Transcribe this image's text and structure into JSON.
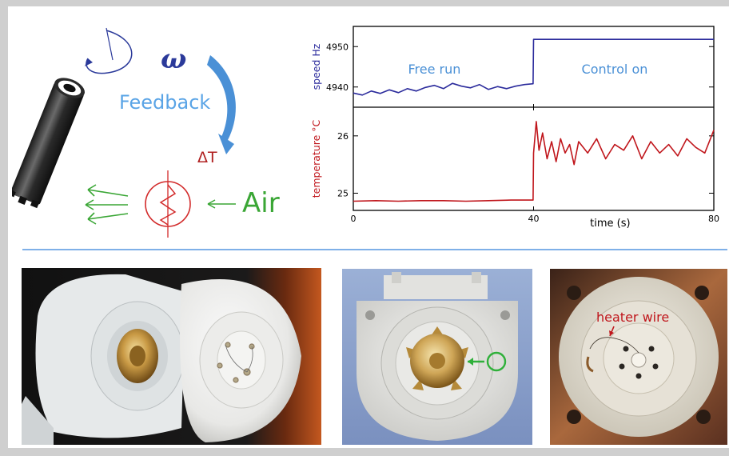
{
  "diagram": {
    "omega_label": "ω",
    "feedback_label": "Feedback",
    "delta_t_label": "ΔT",
    "air_label": "Air",
    "colors": {
      "feedback": "#5aa4e6",
      "air": "#3aa635",
      "heater": "#d22a2a",
      "arrow_blue": "#4a90d6"
    }
  },
  "chart_data": [
    {
      "type": "line",
      "ylabel": "speed Hz",
      "yticks": [
        4940,
        4950
      ],
      "xlim": [
        0,
        80
      ],
      "ylim": [
        4935,
        4955
      ],
      "annotations": [
        "Free run",
        "Control on"
      ],
      "series": [
        {
          "color": "#2b2b9c",
          "x": [
            0,
            2,
            4,
            6,
            8,
            10,
            12,
            14,
            16,
            18,
            20,
            22,
            24,
            26,
            28,
            30,
            32,
            34,
            36,
            38,
            39.9,
            40,
            42,
            50,
            60,
            70,
            80
          ],
          "y": [
            4938.5,
            4938.0,
            4939.0,
            4938.4,
            4939.3,
            4938.6,
            4939.6,
            4939.0,
            4939.9,
            4940.4,
            4939.6,
            4940.9,
            4940.2,
            4939.8,
            4940.6,
            4939.4,
            4940.1,
            4939.6,
            4940.2,
            4940.6,
            4940.8,
            4951.8,
            4951.8,
            4951.8,
            4951.8,
            4951.8,
            4951.8
          ]
        }
      ]
    },
    {
      "type": "line",
      "ylabel": "temperature °C",
      "xlabel": "time (s)",
      "xticks": [
        0,
        40,
        80
      ],
      "yticks": [
        25.0,
        26.0
      ],
      "xlim": [
        0,
        80
      ],
      "ylim": [
        24.7,
        26.5
      ],
      "series": [
        {
          "color": "#c0161c",
          "x": [
            0,
            5,
            10,
            15,
            20,
            25,
            30,
            35,
            39.9,
            40,
            40.6,
            41.2,
            42,
            43,
            44,
            45,
            46,
            47,
            48,
            49,
            50,
            52,
            54,
            56,
            58,
            60,
            62,
            64,
            66,
            68,
            70,
            72,
            74,
            76,
            78,
            80
          ],
          "y": [
            24.86,
            24.87,
            24.86,
            24.87,
            24.87,
            24.86,
            24.87,
            24.88,
            24.88,
            25.7,
            26.25,
            25.75,
            26.05,
            25.6,
            25.9,
            25.55,
            25.95,
            25.7,
            25.85,
            25.5,
            25.9,
            25.7,
            25.95,
            25.6,
            25.85,
            25.75,
            26.0,
            25.6,
            25.9,
            25.7,
            25.85,
            25.65,
            25.95,
            25.8,
            25.7,
            26.1
          ]
        }
      ]
    }
  ],
  "photos": {
    "overlay_label": "heater wire"
  }
}
